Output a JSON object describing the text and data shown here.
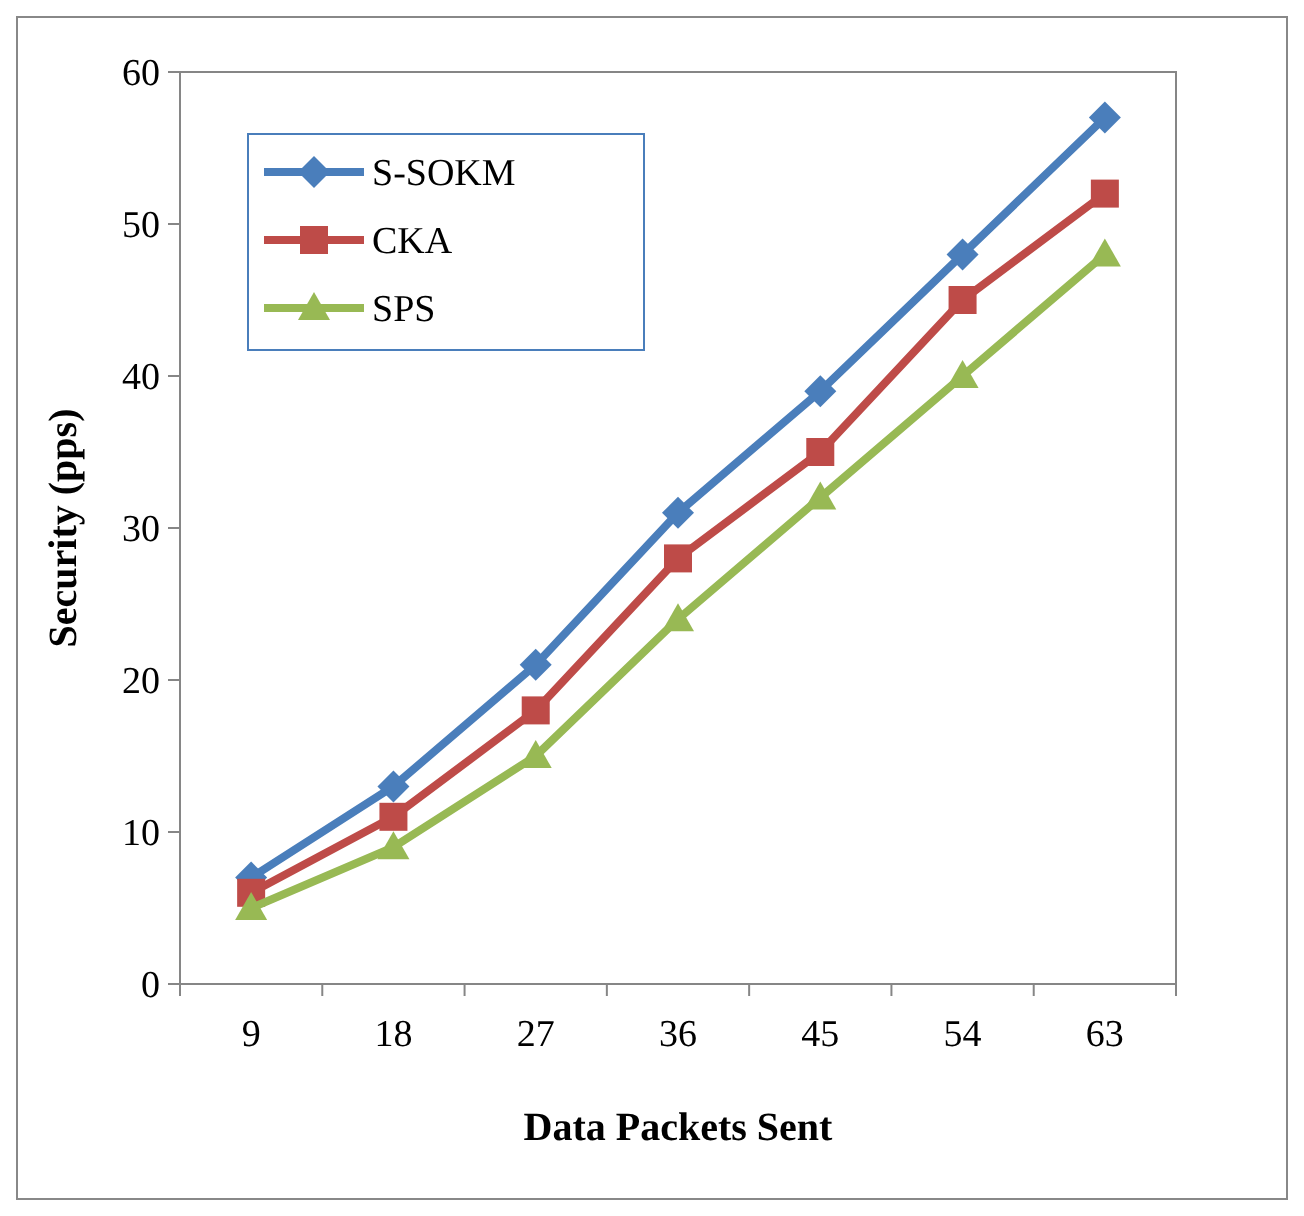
{
  "chart_data": {
    "type": "line",
    "xlabel": "Data Packets Sent",
    "ylabel": "Security (pps)",
    "categories": [
      "9",
      "18",
      "27",
      "36",
      "45",
      "54",
      "63"
    ],
    "ylim": [
      0,
      60
    ],
    "yticks": [
      0,
      10,
      20,
      30,
      40,
      50,
      60
    ],
    "grid": false,
    "legend": "top left",
    "series": [
      {
        "name": "S-SOKM",
        "color": "#4a7ebb",
        "marker": "diamond",
        "values": [
          7,
          13,
          21,
          31,
          39,
          48,
          57
        ]
      },
      {
        "name": "CKA",
        "color": "#be4b48",
        "marker": "square",
        "values": [
          6,
          11,
          18,
          28,
          35,
          45,
          52
        ]
      },
      {
        "name": "SPS",
        "color": "#98b954",
        "marker": "triangle",
        "values": [
          5,
          9,
          15,
          24,
          32,
          40,
          48
        ]
      }
    ]
  }
}
